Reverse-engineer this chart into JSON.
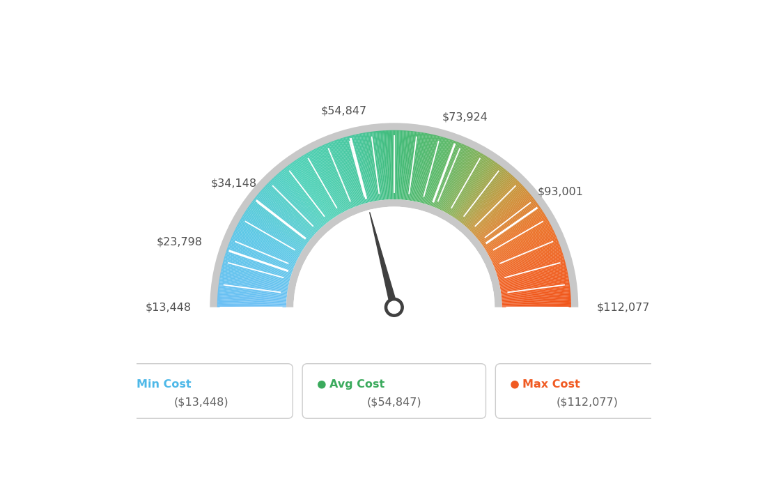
{
  "min_val": 13448,
  "max_val": 112077,
  "avg_val": 54847,
  "labels": [
    "$13,448",
    "$23,798",
    "$34,148",
    "$54,847",
    "$73,924",
    "$93,001",
    "$112,077"
  ],
  "label_values": [
    13448,
    23798,
    34148,
    54847,
    73924,
    93001,
    112077
  ],
  "legend": [
    {
      "label": "Min Cost",
      "value": "($13,448)",
      "color": "#4db8e8"
    },
    {
      "label": "Avg Cost",
      "value": "($54,847)",
      "color": "#3aaa5c"
    },
    {
      "label": "Max Cost",
      "value": "($112,077)",
      "color": "#f05a22"
    }
  ],
  "needle_value": 54847,
  "background_color": "#ffffff",
  "color_stops": [
    [
      0.0,
      [
        0.42,
        0.75,
        0.96
      ]
    ],
    [
      0.15,
      [
        0.35,
        0.78,
        0.9
      ]
    ],
    [
      0.3,
      [
        0.3,
        0.82,
        0.72
      ]
    ],
    [
      0.42,
      [
        0.27,
        0.78,
        0.62
      ]
    ],
    [
      0.5,
      [
        0.25,
        0.73,
        0.47
      ]
    ],
    [
      0.6,
      [
        0.35,
        0.72,
        0.4
      ]
    ],
    [
      0.68,
      [
        0.55,
        0.68,
        0.32
      ]
    ],
    [
      0.75,
      [
        0.78,
        0.58,
        0.22
      ]
    ],
    [
      0.83,
      [
        0.92,
        0.45,
        0.15
      ]
    ],
    [
      0.92,
      [
        0.94,
        0.38,
        0.13
      ]
    ],
    [
      1.0,
      [
        0.94,
        0.33,
        0.1
      ]
    ]
  ]
}
